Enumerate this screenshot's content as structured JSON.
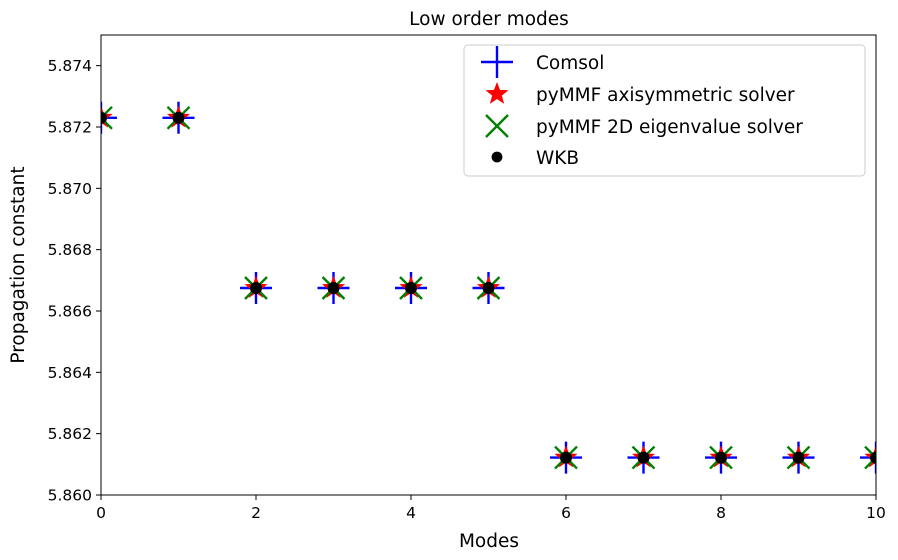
{
  "chart_data": {
    "type": "scatter",
    "title": "Low order modes",
    "xlabel": "Modes",
    "ylabel": "Propagation constant",
    "xlim": [
      0,
      10
    ],
    "ylim": [
      5.86,
      5.875
    ],
    "x_ticks": [
      "0",
      "2",
      "4",
      "6",
      "8",
      "10"
    ],
    "y_ticks": [
      "5.860",
      "5.862",
      "5.864",
      "5.866",
      "5.868",
      "5.870",
      "5.872",
      "5.874"
    ],
    "grid": false,
    "legend_position": "top-right",
    "series": [
      {
        "name": "Comsol",
        "marker": "plus",
        "color": "#0000ff",
        "x": [
          0,
          1,
          2,
          3,
          4,
          5,
          6,
          7,
          8,
          9,
          10
        ],
        "y": [
          5.8723,
          5.8723,
          5.86675,
          5.86675,
          5.86675,
          5.86675,
          5.86122,
          5.86122,
          5.86122,
          5.86122,
          5.86122
        ]
      },
      {
        "name": "pyMMF axisymmetric solver",
        "marker": "star",
        "color": "#ff0000",
        "x": [
          0,
          1,
          2,
          3,
          4,
          5,
          6,
          7,
          8,
          9,
          10
        ],
        "y": [
          5.8723,
          5.8723,
          5.86675,
          5.86675,
          5.86675,
          5.86675,
          5.86122,
          5.86122,
          5.86122,
          5.86122,
          5.86122
        ]
      },
      {
        "name": "pyMMF 2D eigenvalue solver",
        "marker": "x",
        "color": "#008000",
        "x": [
          0,
          1,
          2,
          3,
          4,
          5,
          6,
          7,
          8,
          9,
          10
        ],
        "y": [
          5.8723,
          5.8723,
          5.86675,
          5.86675,
          5.86675,
          5.86675,
          5.86122,
          5.86122,
          5.86122,
          5.86122,
          5.86122
        ]
      },
      {
        "name": "WKB",
        "marker": "dot",
        "color": "#000000",
        "x": [
          0,
          1,
          2,
          3,
          4,
          5,
          6,
          7,
          8,
          9,
          10
        ],
        "y": [
          5.8723,
          5.8723,
          5.86675,
          5.86675,
          5.86675,
          5.86675,
          5.86122,
          5.86122,
          5.86122,
          5.86122,
          5.86122
        ]
      }
    ]
  }
}
